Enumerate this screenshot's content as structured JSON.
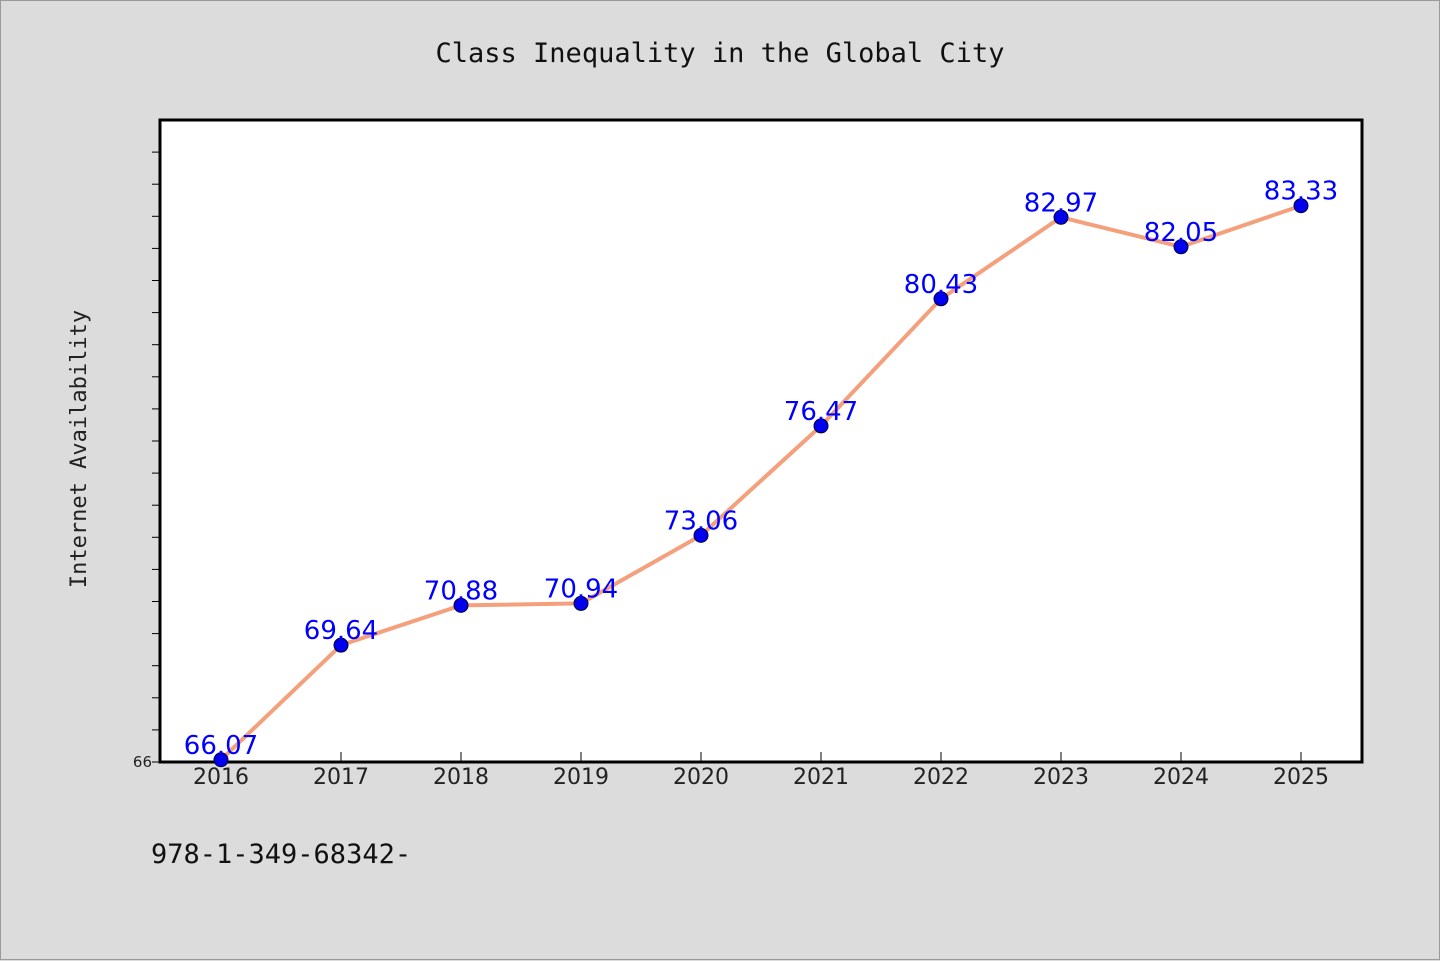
{
  "chart_data": {
    "type": "line",
    "title": "Class Inequality in the Global City",
    "xlabel": "",
    "ylabel": "Internet Availability",
    "categories": [
      "2016",
      "2017",
      "2018",
      "2019",
      "2020",
      "2021",
      "2022",
      "2023",
      "2024",
      "2025"
    ],
    "series": [
      {
        "values": [
          66.07,
          69.64,
          70.88,
          70.94,
          73.06,
          76.47,
          80.43,
          82.97,
          82.05,
          83.33
        ],
        "labels": [
          "66.07",
          "69.64",
          "70.88",
          "70.94",
          "73.06",
          "76.47",
          "80.43",
          "82.97",
          "82.05",
          "83.33"
        ],
        "line_color": "#f4a07c",
        "marker_color": "#0000ee",
        "label_color": "#0000ff"
      }
    ],
    "ylim": [
      66,
      86
    ],
    "y_minor_step": 1,
    "y_tick_labels": [
      "66"
    ],
    "grid": false,
    "legend": "none"
  },
  "footer": {
    "text": "978-1-349-68342-"
  },
  "colors": {
    "background": "#dcdcdc",
    "plot_background": "#ffffff"
  }
}
